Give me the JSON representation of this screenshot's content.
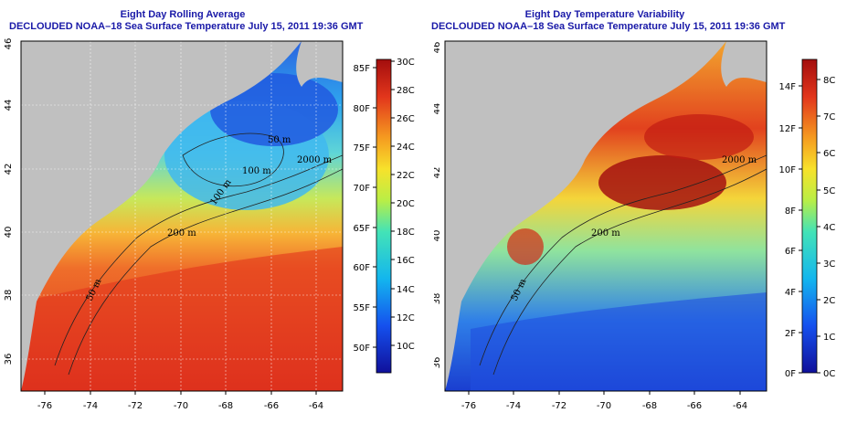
{
  "panels": [
    {
      "title_line1": "Eight Day Rolling Average",
      "title_line2": "DECLOUDED NOAA–18 Sea Surface Temperature July 15, 2011 19:36 GMT",
      "x_ticks": [
        "-76",
        "-74",
        "-72",
        "-70",
        "-68",
        "-66",
        "-64"
      ],
      "y_ticks": [
        "36",
        "38",
        "40",
        "42",
        "44",
        "46"
      ],
      "contours": [
        "50 m",
        "100 m",
        "200 m",
        "2000 m",
        "50 m",
        "100 m"
      ],
      "colorbar": {
        "left_labels": [
          "85F",
          "80F",
          "75F",
          "70F",
          "65F",
          "60F",
          "55F",
          "50F"
        ],
        "right_labels": [
          "30C",
          "28C",
          "26C",
          "24C",
          "22C",
          "20C",
          "18C",
          "16C",
          "14C",
          "12C",
          "10C"
        ]
      }
    },
    {
      "title_line1": "Eight Day Temperature Variability",
      "title_line2": "DECLOUDED NOAA–18 Sea Surface Temperature July 15, 2011 19:36 GMT",
      "x_ticks": [
        "-76",
        "-74",
        "-72",
        "-70",
        "-68",
        "-66",
        "-64"
      ],
      "y_ticks": [
        "36",
        "38",
        "40",
        "42",
        "44",
        "46"
      ],
      "contours": [
        "50 m",
        "200 m",
        "2000 m"
      ],
      "colorbar": {
        "left_labels": [
          "14F",
          "12F",
          "10F",
          "8F",
          "6F",
          "4F",
          "2F",
          "0F"
        ],
        "right_labels": [
          "8C",
          "7C",
          "6C",
          "5C",
          "4C",
          "3C",
          "2C",
          "1C",
          "0C"
        ]
      }
    }
  ],
  "colors": {
    "land": "#c0c0c0",
    "title": "#1a1aa8",
    "sst_warm": "#d9261c",
    "sst_cool": "#2b6ee8"
  }
}
